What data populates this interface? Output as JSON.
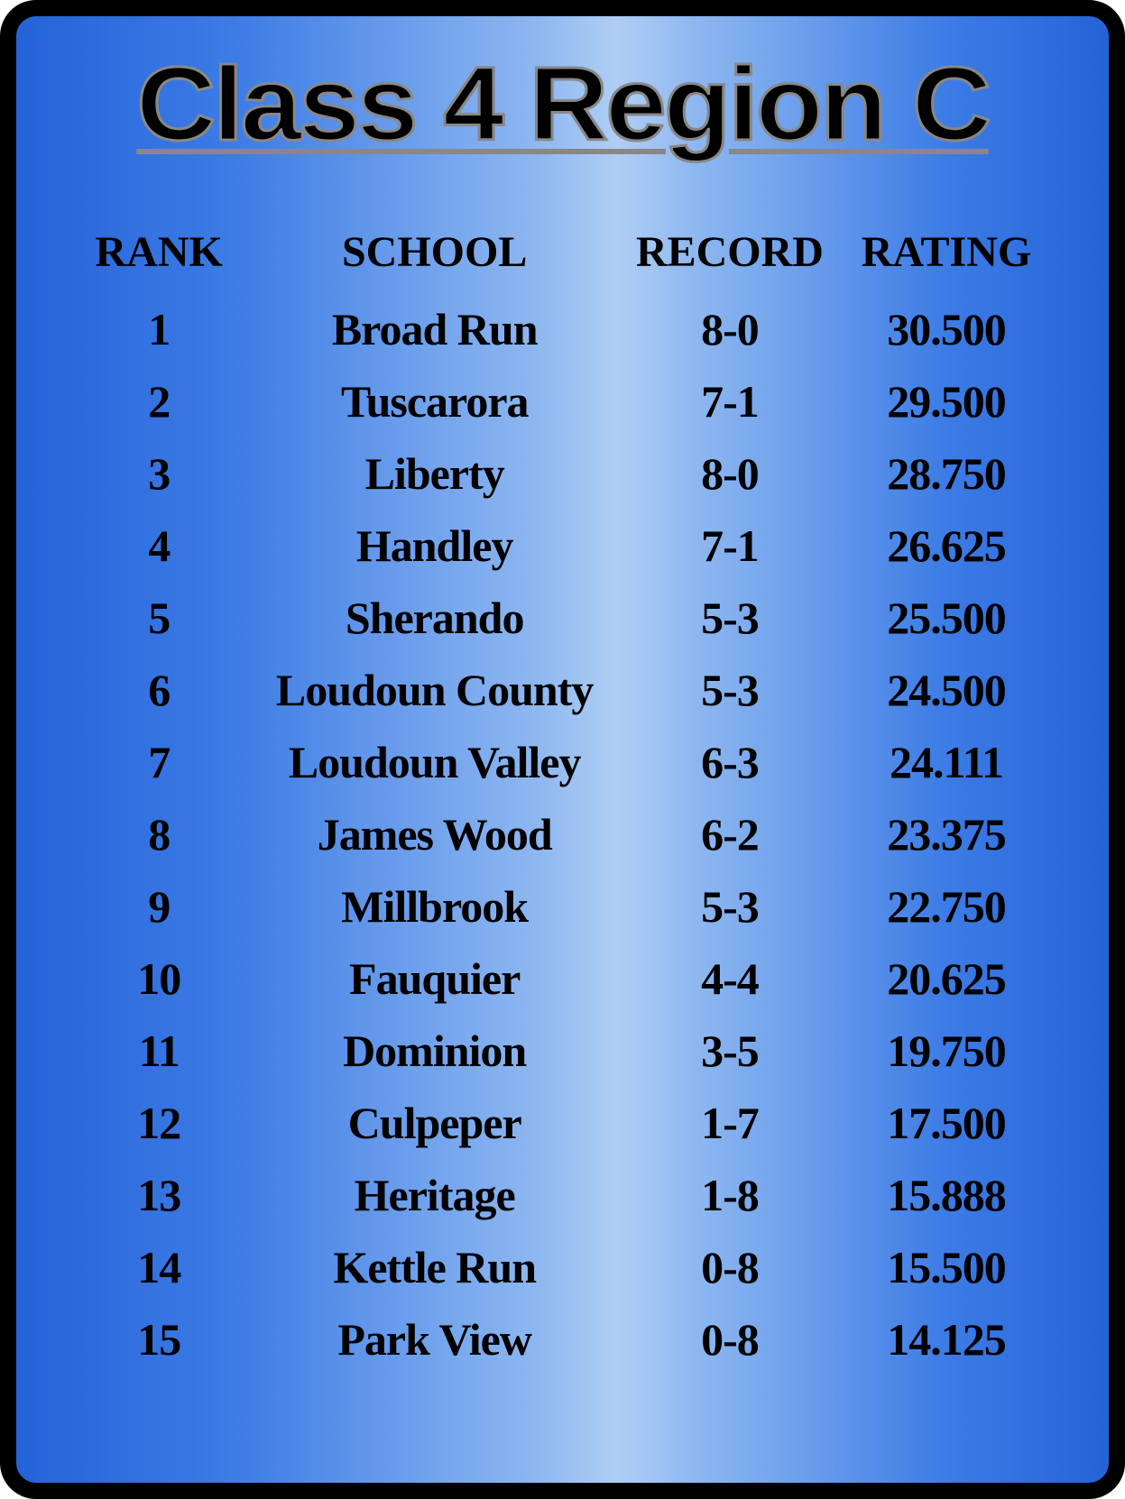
{
  "title": "Class 4 Region C",
  "table": {
    "type": "table",
    "columns": [
      "RANK",
      "SCHOOL",
      "RECORD",
      "RATING"
    ],
    "rows": [
      {
        "rank": "1",
        "school": "Broad Run",
        "record": "8-0",
        "rating": "30.500"
      },
      {
        "rank": "2",
        "school": "Tuscarora",
        "record": "7-1",
        "rating": "29.500"
      },
      {
        "rank": "3",
        "school": "Liberty",
        "record": "8-0",
        "rating": "28.750"
      },
      {
        "rank": "4",
        "school": "Handley",
        "record": "7-1",
        "rating": "26.625"
      },
      {
        "rank": "5",
        "school": "Sherando",
        "record": "5-3",
        "rating": "25.500"
      },
      {
        "rank": "6",
        "school": "Loudoun County",
        "record": "5-3",
        "rating": "24.500"
      },
      {
        "rank": "7",
        "school": "Loudoun Valley",
        "record": "6-3",
        "rating": "24.111"
      },
      {
        "rank": "8",
        "school": "James Wood",
        "record": "6-2",
        "rating": "23.375"
      },
      {
        "rank": "9",
        "school": "Millbrook",
        "record": "5-3",
        "rating": "22.750"
      },
      {
        "rank": "10",
        "school": "Fauquier",
        "record": "4-4",
        "rating": "20.625"
      },
      {
        "rank": "11",
        "school": "Dominion",
        "record": "3-5",
        "rating": "19.750"
      },
      {
        "rank": "12",
        "school": "Culpeper",
        "record": "1-7",
        "rating": "17.500"
      },
      {
        "rank": "13",
        "school": "Heritage",
        "record": "1-8",
        "rating": "15.888"
      },
      {
        "rank": "14",
        "school": "Kettle Run",
        "record": "0-8",
        "rating": "15.500"
      },
      {
        "rank": "15",
        "school": "Park View",
        "record": "0-8",
        "rating": "14.125"
      }
    ],
    "header_fontsize": 48,
    "cell_fontsize": 50,
    "text_color": "#000000",
    "font_family": "Georgia",
    "font_weight": 900
  },
  "styling": {
    "panel_border_color": "#000000",
    "panel_border_width": 18,
    "panel_border_radius": 40,
    "gradient_colors": [
      "#2463d8",
      "#3d7ce5",
      "#8fb8f0",
      "#b0cef5",
      "#8fb8f0",
      "#3d7ce5",
      "#2463d8"
    ],
    "gradient_direction": "horizontal",
    "title_fontsize": 116,
    "title_color": "#000000",
    "title_stroke_color": "#888888",
    "title_underline": true,
    "title_font_family": "Arial Black"
  }
}
